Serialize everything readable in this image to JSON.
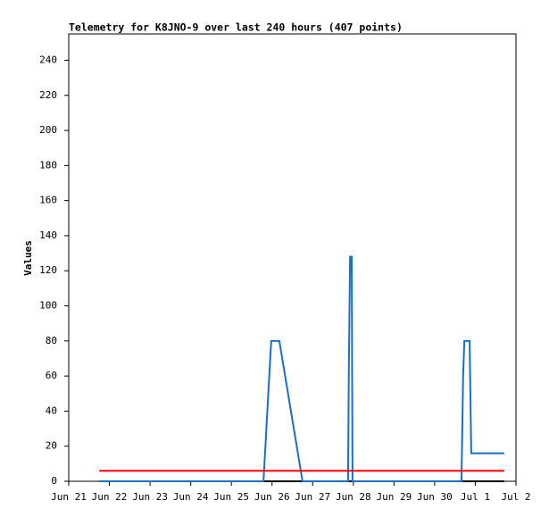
{
  "chart_data": {
    "type": "line",
    "title": "Telemetry for K8JNO-9 over last 240 hours (407 points)",
    "y_label": "Values",
    "xlim": [
      0,
      11
    ],
    "xticks": [
      {
        "value": 0,
        "label": "Jun 21"
      },
      {
        "value": 1,
        "label": "Jun 22"
      },
      {
        "value": 2,
        "label": "Jun 23"
      },
      {
        "value": 3,
        "label": "Jun 24"
      },
      {
        "value": 4,
        "label": "Jun 25"
      },
      {
        "value": 5,
        "label": "Jun 26"
      },
      {
        "value": 6,
        "label": "Jun 27"
      },
      {
        "value": 7,
        "label": "Jun 28"
      },
      {
        "value": 8,
        "label": "Jun 29"
      },
      {
        "value": 9,
        "label": "Jun 30"
      },
      {
        "value": 10,
        "label": "Jul 1"
      },
      {
        "value": 11,
        "label": "Jul 2"
      }
    ],
    "ylim": [
      0,
      255
    ],
    "yticks": [
      0,
      20,
      40,
      60,
      80,
      100,
      120,
      140,
      160,
      180,
      200,
      220,
      240
    ],
    "series": [
      {
        "color": "#000000",
        "x": [
          0.75,
          10.71
        ],
        "values": [
          0,
          0
        ]
      },
      {
        "color": "#1a6fc4",
        "x": [
          0.75,
          4.79,
          4.98,
          5.18,
          5.75,
          6.87,
          6.89,
          6.92,
          6.96,
          6.98,
          9.66,
          9.7,
          9.73,
          9.86,
          9.88,
          9.9,
          10.71
        ],
        "values": [
          0,
          0,
          80,
          80,
          0,
          0,
          65,
          128,
          128,
          0,
          0,
          60,
          80,
          80,
          48,
          16,
          16
        ]
      },
      {
        "color": "#ff0000",
        "x": [
          0.75,
          10.71
        ],
        "values": [
          6,
          6
        ]
      }
    ]
  }
}
